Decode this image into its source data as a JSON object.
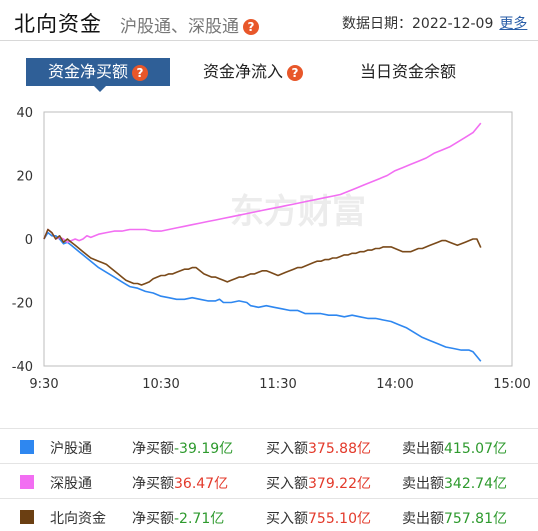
{
  "header": {
    "title": "北向资金",
    "subtitle": "沪股通、深股通",
    "help": "?",
    "date_label": "数据日期：",
    "date": "2022-12-09",
    "more": "更多"
  },
  "tabs": [
    {
      "label": "资金净买额",
      "help": "?",
      "active": true
    },
    {
      "label": "资金净流入",
      "help": "?",
      "active": false
    },
    {
      "label": "当日资金余额",
      "help": "",
      "active": false
    }
  ],
  "watermark": "东方财富",
  "chart_data": {
    "type": "line",
    "title": "",
    "xlabel": "",
    "ylabel": "",
    "ylim": [
      -40,
      40
    ],
    "yticks": [
      "40",
      "20",
      "0",
      "-20",
      "-40"
    ],
    "xticks": [
      "9:30",
      "10:30",
      "11:30",
      "14:00",
      "15:00"
    ],
    "grid": false,
    "series": [
      {
        "name": "沪股通",
        "color": "#2e87f0",
        "points": [
          [
            0,
            0
          ],
          [
            2,
            2
          ],
          [
            4,
            1
          ],
          [
            6,
            1
          ],
          [
            8,
            0
          ],
          [
            10,
            -1.5
          ],
          [
            12,
            -1
          ],
          [
            14,
            -2
          ],
          [
            16,
            -3
          ],
          [
            18,
            -4
          ],
          [
            20,
            -5
          ],
          [
            24,
            -7
          ],
          [
            28,
            -9
          ],
          [
            32,
            -10.5
          ],
          [
            36,
            -12
          ],
          [
            40,
            -13.5
          ],
          [
            44,
            -15
          ],
          [
            48,
            -15.5
          ],
          [
            52,
            -16.5
          ],
          [
            56,
            -17
          ],
          [
            60,
            -18
          ],
          [
            64,
            -18.5
          ],
          [
            68,
            -19
          ],
          [
            72,
            -19
          ],
          [
            76,
            -18.5
          ],
          [
            80,
            -19
          ],
          [
            84,
            -19.5
          ],
          [
            88,
            -19.5
          ],
          [
            90,
            -19
          ],
          [
            92,
            -20
          ],
          [
            96,
            -20
          ],
          [
            100,
            -19.5
          ],
          [
            104,
            -20
          ],
          [
            106,
            -21
          ],
          [
            110,
            -21.5
          ],
          [
            114,
            -21
          ],
          [
            118,
            -21.5
          ],
          [
            122,
            -22
          ],
          [
            126,
            -22.5
          ],
          [
            130,
            -22.5
          ],
          [
            134,
            -23.5
          ],
          [
            138,
            -23.5
          ],
          [
            142,
            -23.5
          ],
          [
            146,
            -24
          ],
          [
            150,
            -24
          ],
          [
            154,
            -24.5
          ],
          [
            158,
            -24
          ],
          [
            162,
            -24.5
          ],
          [
            166,
            -25
          ],
          [
            170,
            -25
          ],
          [
            174,
            -25.5
          ],
          [
            178,
            -26
          ],
          [
            182,
            -27
          ],
          [
            186,
            -28
          ],
          [
            190,
            -29.5
          ],
          [
            194,
            -31
          ],
          [
            198,
            -32
          ],
          [
            202,
            -33
          ],
          [
            206,
            -34
          ],
          [
            210,
            -34.5
          ],
          [
            214,
            -35
          ],
          [
            218,
            -35
          ],
          [
            220,
            -35.5
          ],
          [
            222,
            -37
          ],
          [
            224,
            -38.5
          ]
        ]
      },
      {
        "name": "深股通",
        "color": "#f26ef2",
        "points": [
          [
            0,
            0
          ],
          [
            2,
            3
          ],
          [
            4,
            2
          ],
          [
            6,
            0
          ],
          [
            8,
            0.5
          ],
          [
            10,
            0
          ],
          [
            12,
            -1
          ],
          [
            14,
            -0.5
          ],
          [
            16,
            0
          ],
          [
            18,
            -0.5
          ],
          [
            20,
            0
          ],
          [
            22,
            1
          ],
          [
            24,
            0.5
          ],
          [
            28,
            1.5
          ],
          [
            32,
            2
          ],
          [
            36,
            2.5
          ],
          [
            40,
            2.5
          ],
          [
            44,
            3
          ],
          [
            48,
            3
          ],
          [
            52,
            3
          ],
          [
            56,
            2.5
          ],
          [
            60,
            2.5
          ],
          [
            64,
            3
          ],
          [
            68,
            3.5
          ],
          [
            72,
            4
          ],
          [
            76,
            4.5
          ],
          [
            80,
            5
          ],
          [
            84,
            5.5
          ],
          [
            88,
            6
          ],
          [
            92,
            6.5
          ],
          [
            96,
            7
          ],
          [
            100,
            7.5
          ],
          [
            104,
            8
          ],
          [
            108,
            8.5
          ],
          [
            112,
            9
          ],
          [
            116,
            9.5
          ],
          [
            120,
            10
          ],
          [
            124,
            10.5
          ],
          [
            128,
            11
          ],
          [
            132,
            11.5
          ],
          [
            136,
            12
          ],
          [
            140,
            12.5
          ],
          [
            144,
            13
          ],
          [
            148,
            13.5
          ],
          [
            152,
            14
          ],
          [
            156,
            15
          ],
          [
            160,
            16
          ],
          [
            164,
            17
          ],
          [
            168,
            18
          ],
          [
            172,
            19
          ],
          [
            176,
            20
          ],
          [
            180,
            21.5
          ],
          [
            184,
            22.5
          ],
          [
            188,
            23.5
          ],
          [
            192,
            24.5
          ],
          [
            196,
            25.5
          ],
          [
            200,
            27
          ],
          [
            204,
            28
          ],
          [
            208,
            29
          ],
          [
            212,
            30.5
          ],
          [
            216,
            32
          ],
          [
            220,
            33.5
          ],
          [
            222,
            35
          ],
          [
            224,
            36.5
          ]
        ]
      },
      {
        "name": "北向资金",
        "color": "#7a4a1a",
        "points": [
          [
            0,
            0
          ],
          [
            2,
            3
          ],
          [
            4,
            2
          ],
          [
            6,
            0
          ],
          [
            8,
            1
          ],
          [
            10,
            -1
          ],
          [
            12,
            0
          ],
          [
            14,
            -1
          ],
          [
            16,
            -2
          ],
          [
            18,
            -3
          ],
          [
            20,
            -4
          ],
          [
            22,
            -5
          ],
          [
            24,
            -6
          ],
          [
            26,
            -6.5
          ],
          [
            28,
            -7
          ],
          [
            30,
            -7.5
          ],
          [
            32,
            -8
          ],
          [
            34,
            -9
          ],
          [
            36,
            -10
          ],
          [
            38,
            -11
          ],
          [
            40,
            -12
          ],
          [
            42,
            -13
          ],
          [
            44,
            -13.5
          ],
          [
            46,
            -14
          ],
          [
            48,
            -14
          ],
          [
            50,
            -14.5
          ],
          [
            52,
            -14
          ],
          [
            54,
            -13.5
          ],
          [
            56,
            -12.5
          ],
          [
            58,
            -12
          ],
          [
            60,
            -11.5
          ],
          [
            62,
            -11.5
          ],
          [
            64,
            -11
          ],
          [
            66,
            -11
          ],
          [
            68,
            -10.5
          ],
          [
            70,
            -10
          ],
          [
            72,
            -9.5
          ],
          [
            74,
            -9.5
          ],
          [
            76,
            -9
          ],
          [
            78,
            -9
          ],
          [
            80,
            -10
          ],
          [
            82,
            -11
          ],
          [
            84,
            -11.5
          ],
          [
            86,
            -12
          ],
          [
            88,
            -12
          ],
          [
            90,
            -12.5
          ],
          [
            92,
            -13
          ],
          [
            94,
            -13.5
          ],
          [
            96,
            -13
          ],
          [
            98,
            -12.5
          ],
          [
            100,
            -12
          ],
          [
            102,
            -12
          ],
          [
            104,
            -11.5
          ],
          [
            106,
            -11
          ],
          [
            108,
            -11
          ],
          [
            110,
            -10.5
          ],
          [
            112,
            -10
          ],
          [
            114,
            -10
          ],
          [
            116,
            -10.5
          ],
          [
            118,
            -11
          ],
          [
            120,
            -11.5
          ],
          [
            122,
            -11
          ],
          [
            124,
            -10.5
          ],
          [
            126,
            -10
          ],
          [
            128,
            -9.5
          ],
          [
            130,
            -9
          ],
          [
            132,
            -9
          ],
          [
            134,
            -8.5
          ],
          [
            136,
            -8
          ],
          [
            138,
            -7.5
          ],
          [
            140,
            -7
          ],
          [
            142,
            -7
          ],
          [
            144,
            -6.5
          ],
          [
            146,
            -6.5
          ],
          [
            148,
            -6
          ],
          [
            150,
            -6
          ],
          [
            152,
            -5.5
          ],
          [
            154,
            -5
          ],
          [
            156,
            -5
          ],
          [
            158,
            -4.5
          ],
          [
            160,
            -4.5
          ],
          [
            162,
            -4
          ],
          [
            164,
            -4
          ],
          [
            166,
            -3.5
          ],
          [
            168,
            -3.5
          ],
          [
            170,
            -3
          ],
          [
            172,
            -3
          ],
          [
            174,
            -2.5
          ],
          [
            176,
            -2.5
          ],
          [
            178,
            -2.5
          ],
          [
            180,
            -3
          ],
          [
            182,
            -3.5
          ],
          [
            184,
            -4
          ],
          [
            186,
            -4
          ],
          [
            188,
            -4
          ],
          [
            190,
            -3.5
          ],
          [
            192,
            -3
          ],
          [
            194,
            -3
          ],
          [
            196,
            -2.5
          ],
          [
            198,
            -2
          ],
          [
            200,
            -1.5
          ],
          [
            202,
            -1
          ],
          [
            204,
            -0.5
          ],
          [
            206,
            -0.5
          ],
          [
            208,
            -1
          ],
          [
            210,
            -1.5
          ],
          [
            212,
            -2
          ],
          [
            214,
            -1.5
          ],
          [
            216,
            -1
          ],
          [
            218,
            -0.5
          ],
          [
            220,
            0
          ],
          [
            222,
            0
          ],
          [
            224,
            -2.7
          ]
        ]
      }
    ],
    "x_max": 240
  },
  "legend": {
    "net_label": "净买额",
    "buy_label": "买入额",
    "sell_label": "卖出额",
    "rows": [
      {
        "name": "沪股通",
        "color": "#2e87f0",
        "net": "-39.19亿",
        "buy": "375.88亿",
        "sell": "415.07亿"
      },
      {
        "name": "深股通",
        "color": "#f26ef2",
        "net": "36.47亿",
        "buy": "379.22亿",
        "sell": "342.74亿"
      },
      {
        "name": "北向资金",
        "color": "#6b3f12",
        "net": "-2.71亿",
        "buy": "755.10亿",
        "sell": "757.81亿"
      }
    ]
  }
}
